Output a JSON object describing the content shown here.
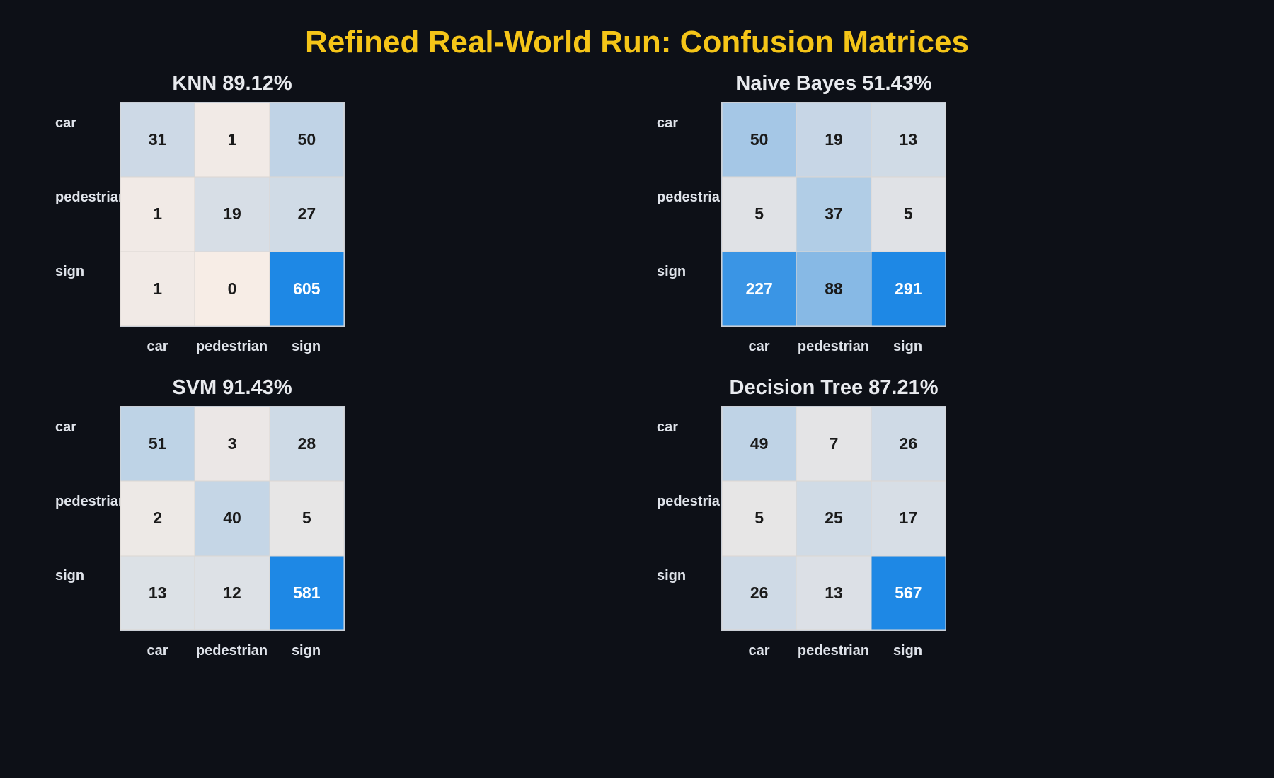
{
  "title": "Refined Real-World Run: Confusion Matrices",
  "colors": {
    "background": "#0d1017",
    "title": "#f5c518",
    "low": "#f7ede6",
    "high": "#1e88e5",
    "text_dark": "#1a1a1a",
    "text_light": "#ffffff"
  },
  "chart_data": [
    {
      "type": "heatmap",
      "title": "KNN 89.12%",
      "row_labels": [
        "car",
        "pedestrian",
        "sign"
      ],
      "col_labels": [
        "car",
        "pedestrian",
        "sign"
      ],
      "values": [
        [
          31,
          1,
          50
        ],
        [
          1,
          19,
          27
        ],
        [
          1,
          0,
          605
        ]
      ]
    },
    {
      "type": "heatmap",
      "title": "Naive Bayes 51.43%",
      "row_labels": [
        "car",
        "pedestrian",
        "sign"
      ],
      "col_labels": [
        "car",
        "pedestrian",
        "sign"
      ],
      "values": [
        [
          50,
          19,
          13
        ],
        [
          5,
          37,
          5
        ],
        [
          227,
          88,
          291
        ]
      ]
    },
    {
      "type": "heatmap",
      "title": "SVM 91.43%",
      "row_labels": [
        "car",
        "pedestrian",
        "sign"
      ],
      "col_labels": [
        "car",
        "pedestrian",
        "sign"
      ],
      "values": [
        [
          51,
          3,
          28
        ],
        [
          2,
          40,
          5
        ],
        [
          13,
          12,
          581
        ]
      ]
    },
    {
      "type": "heatmap",
      "title": "Decision Tree 87.21%",
      "row_labels": [
        "car",
        "pedestrian",
        "sign"
      ],
      "col_labels": [
        "car",
        "pedestrian",
        "sign"
      ],
      "values": [
        [
          49,
          7,
          26
        ],
        [
          5,
          25,
          17
        ],
        [
          26,
          13,
          567
        ]
      ]
    }
  ]
}
